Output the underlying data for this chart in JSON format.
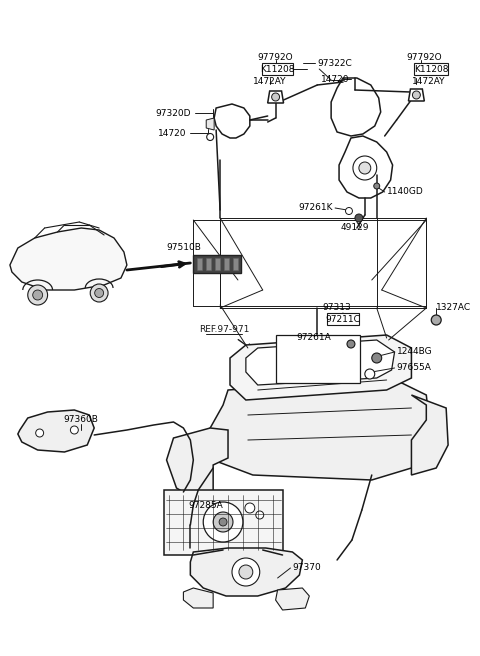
{
  "bg_color": "#ffffff",
  "line_color": "#1a1a1a",
  "label_color": "#000000",
  "figsize": [
    4.8,
    6.56
  ],
  "dpi": 100,
  "xlim": [
    0,
    480
  ],
  "ylim": [
    0,
    656
  ]
}
